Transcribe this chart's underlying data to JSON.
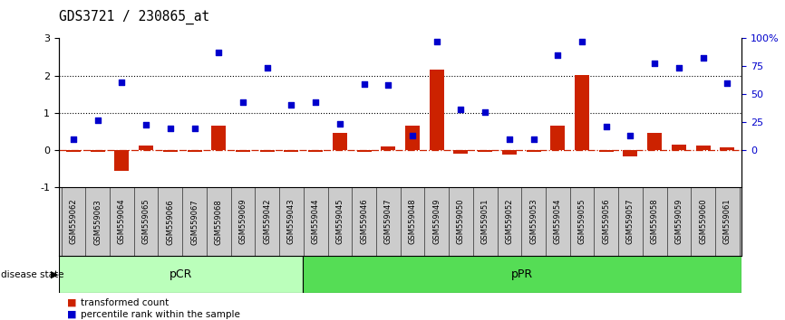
{
  "title": "GDS3721 / 230865_at",
  "samples": [
    "GSM559062",
    "GSM559063",
    "GSM559064",
    "GSM559065",
    "GSM559066",
    "GSM559067",
    "GSM559068",
    "GSM559069",
    "GSM559042",
    "GSM559043",
    "GSM559044",
    "GSM559045",
    "GSM559046",
    "GSM559047",
    "GSM559048",
    "GSM559049",
    "GSM559050",
    "GSM559051",
    "GSM559052",
    "GSM559053",
    "GSM559054",
    "GSM559055",
    "GSM559056",
    "GSM559057",
    "GSM559058",
    "GSM559059",
    "GSM559060",
    "GSM559061"
  ],
  "transformed_count": [
    -0.05,
    -0.04,
    -0.55,
    0.12,
    -0.05,
    -0.04,
    0.65,
    -0.04,
    -0.05,
    -0.04,
    -0.04,
    0.47,
    -0.04,
    0.1,
    0.65,
    2.15,
    -0.1,
    -0.04,
    -0.12,
    -0.05,
    0.65,
    2.02,
    -0.06,
    -0.18,
    0.45,
    0.15,
    0.12,
    0.08
  ],
  "percentile_rank_scaled": [
    0.28,
    0.8,
    1.82,
    0.68,
    0.58,
    0.58,
    2.62,
    1.28,
    2.2,
    1.22,
    1.28,
    0.7,
    1.78,
    1.75,
    0.38,
    2.92,
    1.08,
    1.02,
    0.3,
    0.28,
    2.55,
    2.92,
    0.62,
    0.38,
    2.32,
    2.2,
    2.48,
    1.8
  ],
  "pCR_count": 10,
  "pPR_count": 18,
  "bar_color": "#cc2200",
  "dot_color": "#0000cc",
  "zero_line_color": "#cc2200",
  "dotted_line_color": "#000000",
  "pCR_color": "#bbffbb",
  "pPR_color": "#55dd55",
  "tick_area_color": "#cccccc",
  "ylim": [
    -1.0,
    3.0
  ],
  "yticks_left": [
    -1,
    0,
    1,
    2,
    3
  ],
  "ytick_labels_left": [
    "-1",
    "0",
    "1",
    "2",
    "3"
  ],
  "yticks_right_pos": [
    0.0,
    0.75,
    1.5,
    2.25,
    3.0
  ],
  "ytick_labels_right": [
    "0",
    "25",
    "50",
    "75",
    "100%"
  ]
}
